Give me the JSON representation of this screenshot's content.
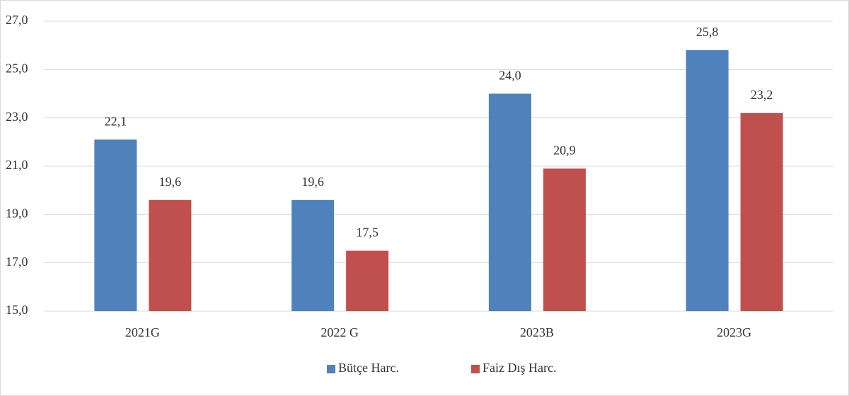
{
  "chart_data": {
    "type": "bar",
    "categories": [
      "2021G",
      "2022 G",
      "2023B",
      "2023G"
    ],
    "series": [
      {
        "name": "Bütçe Harc.",
        "color": "#4f81bd",
        "values": [
          22.1,
          19.6,
          24.0,
          25.8
        ],
        "value_labels": [
          "22,1",
          "19,6",
          "24,0",
          "25,8"
        ]
      },
      {
        "name": "Faiz Dış Harc.",
        "color": "#c0504d",
        "values": [
          19.6,
          17.5,
          20.9,
          23.2
        ],
        "value_labels": [
          "19,6",
          "17,5",
          "20,9",
          "23,2"
        ]
      }
    ],
    "ylim": [
      15,
      27
    ],
    "yticks": [
      {
        "value": 15,
        "label": "15,0"
      },
      {
        "value": 17,
        "label": "17,0"
      },
      {
        "value": 19,
        "label": "19,0"
      },
      {
        "value": 21,
        "label": "21,0"
      },
      {
        "value": 23,
        "label": "23,0"
      },
      {
        "value": 25,
        "label": "25,0"
      },
      {
        "value": 27,
        "label": "27,0"
      }
    ],
    "grid": true,
    "legend": "bottom"
  }
}
